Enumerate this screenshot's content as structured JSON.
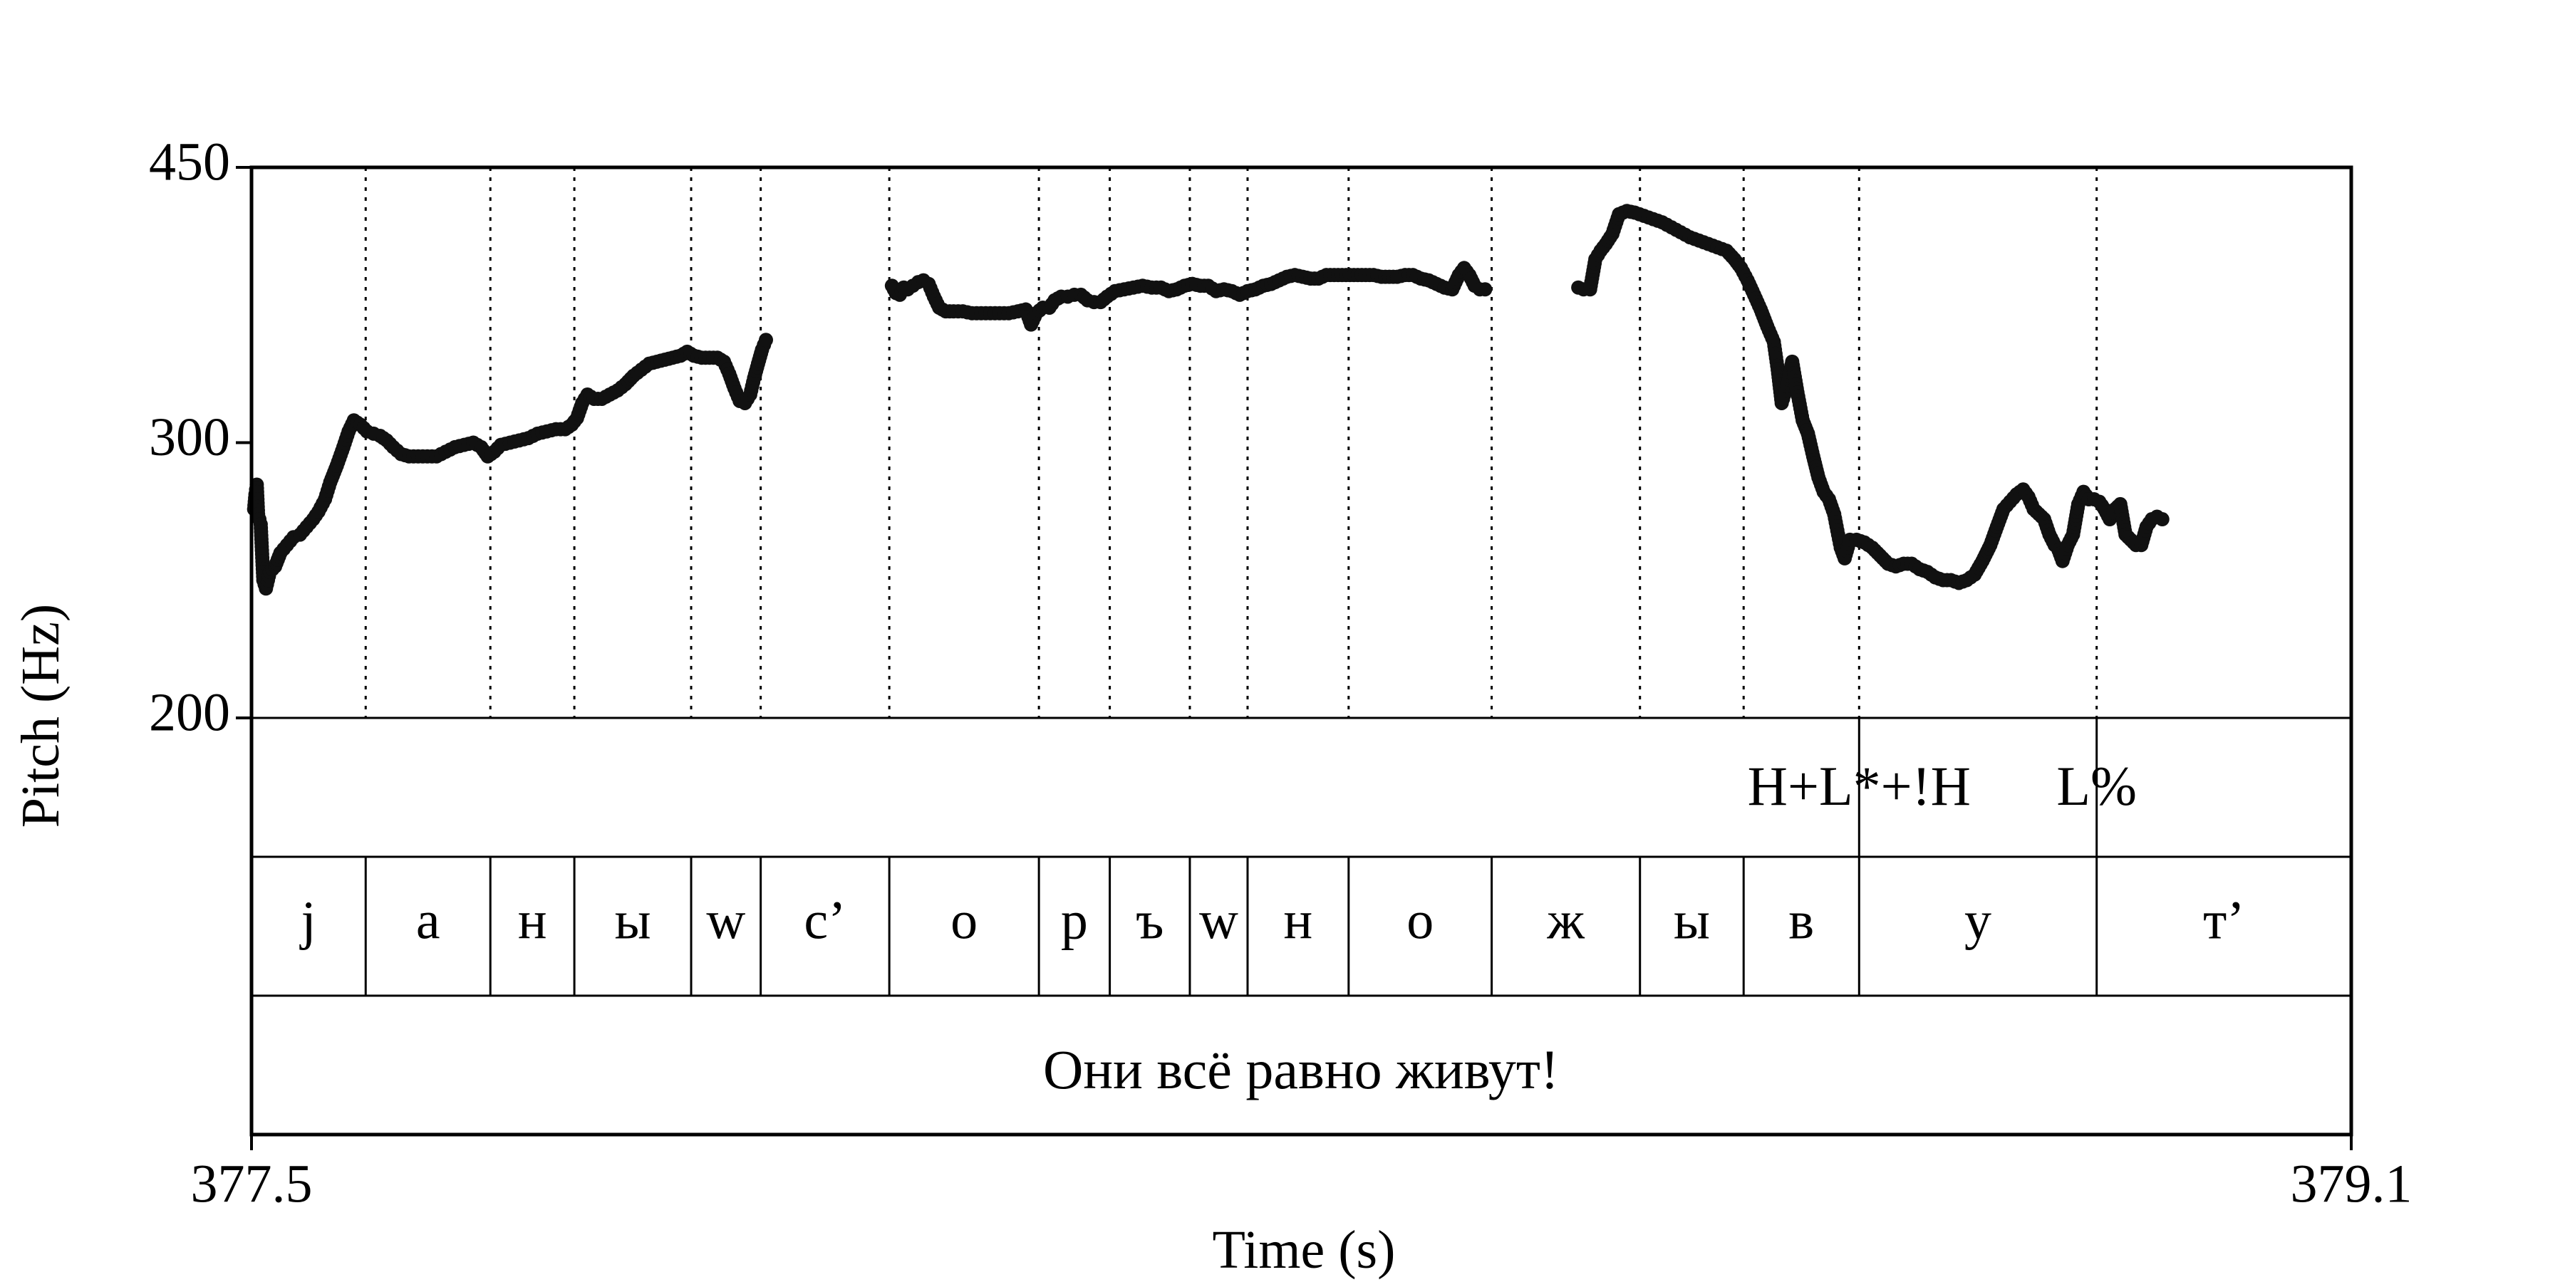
{
  "chart_data": {
    "type": "scatter",
    "title": "",
    "xlabel": "Time (s)",
    "ylabel": "Pitch (Hz)",
    "xlim": [
      377.5,
      379.1
    ],
    "ylim": [
      200,
      450
    ],
    "y_scale": "log",
    "x_tick_labels": [
      "377.5",
      "379.1"
    ],
    "x_ticks": [
      377.5,
      379.1
    ],
    "y_tick_labels": [
      "200",
      "300",
      "450"
    ],
    "y_ticks": [
      200,
      300,
      450
    ],
    "segment_boundaries": [
      377.587,
      377.682,
      377.746,
      377.835,
      377.888,
      377.986,
      378.1,
      378.154,
      378.215,
      378.259,
      378.336,
      378.445,
      378.558,
      378.637,
      378.725,
      378.906
    ],
    "segments": [
      {
        "label": "j",
        "start": 377.5,
        "end": 377.587
      },
      {
        "label": "а",
        "start": 377.587,
        "end": 377.682
      },
      {
        "label": "н",
        "start": 377.682,
        "end": 377.746
      },
      {
        "label": "ы",
        "start": 377.746,
        "end": 377.835
      },
      {
        "label": "w",
        "start": 377.835,
        "end": 377.888
      },
      {
        "label": "с’",
        "start": 377.888,
        "end": 377.986
      },
      {
        "label": "о",
        "start": 377.986,
        "end": 378.1
      },
      {
        "label": "р",
        "start": 378.1,
        "end": 378.154
      },
      {
        "label": "ъ",
        "start": 378.154,
        "end": 378.215
      },
      {
        "label": "w",
        "start": 378.215,
        "end": 378.259
      },
      {
        "label": "н",
        "start": 378.259,
        "end": 378.336
      },
      {
        "label": "о",
        "start": 378.336,
        "end": 378.445
      },
      {
        "label": "ж",
        "start": 378.445,
        "end": 378.558
      },
      {
        "label": "ы",
        "start": 378.558,
        "end": 378.637
      },
      {
        "label": "в",
        "start": 378.637,
        "end": 378.725
      },
      {
        "label": "у",
        "start": 378.725,
        "end": 378.906
      },
      {
        "label": "т’",
        "start": 378.906,
        "end": 379.1
      }
    ],
    "tones": [
      {
        "label": "H+L*+!H",
        "time": 378.725
      },
      {
        "label": "L%",
        "time": 378.906
      }
    ],
    "sentence": "Они всё равно живут!",
    "pitch_contours": [
      {
        "points": [
          [
            377.502,
            272
          ],
          [
            377.503,
            278
          ],
          [
            377.504,
            282
          ],
          [
            377.505,
            270
          ],
          [
            377.507,
            266
          ],
          [
            377.509,
            245
          ],
          [
            377.511,
            242
          ],
          [
            377.514,
            248
          ],
          [
            377.518,
            250
          ],
          [
            377.522,
            255
          ],
          [
            377.527,
            258
          ],
          [
            377.532,
            261
          ],
          [
            377.537,
            262
          ],
          [
            377.542,
            265
          ],
          [
            377.547,
            268
          ],
          [
            377.551,
            271
          ],
          [
            377.556,
            276
          ],
          [
            377.56,
            283
          ],
          [
            377.565,
            290
          ],
          [
            377.57,
            298
          ],
          [
            377.574,
            305
          ],
          [
            377.578,
            310
          ],
          [
            377.583,
            308
          ],
          [
            377.588,
            305
          ],
          [
            377.593,
            304
          ],
          [
            377.598,
            303
          ],
          [
            377.603,
            301
          ],
          [
            377.608,
            298
          ],
          [
            377.614,
            295
          ],
          [
            377.62,
            294
          ],
          [
            377.627,
            294
          ],
          [
            377.634,
            294
          ],
          [
            377.641,
            294
          ],
          [
            377.648,
            296
          ],
          [
            377.655,
            298
          ],
          [
            377.662,
            299
          ],
          [
            377.669,
            300
          ],
          [
            377.675,
            298
          ],
          [
            377.68,
            294
          ],
          [
            377.685,
            296
          ],
          [
            377.69,
            299
          ],
          [
            377.697,
            300
          ],
          [
            377.704,
            301
          ],
          [
            377.711,
            302
          ],
          [
            377.718,
            304
          ],
          [
            377.725,
            305
          ],
          [
            377.732,
            306
          ],
          [
            377.739,
            306
          ],
          [
            377.744,
            308
          ],
          [
            377.748,
            311
          ],
          [
            377.752,
            318
          ],
          [
            377.756,
            322
          ],
          [
            377.761,
            320
          ],
          [
            377.767,
            320
          ],
          [
            377.773,
            322
          ],
          [
            377.779,
            324
          ],
          [
            377.785,
            327
          ],
          [
            377.791,
            331
          ],
          [
            377.797,
            334
          ],
          [
            377.803,
            337
          ],
          [
            377.809,
            338
          ],
          [
            377.815,
            339
          ],
          [
            377.821,
            340
          ],
          [
            377.827,
            341
          ],
          [
            377.832,
            343
          ],
          [
            377.837,
            341
          ],
          [
            377.843,
            340
          ],
          [
            377.849,
            340
          ],
          [
            377.855,
            340
          ],
          [
            377.86,
            338
          ],
          [
            377.864,
            332
          ],
          [
            377.868,
            325
          ],
          [
            377.872,
            319
          ],
          [
            377.876,
            318
          ],
          [
            377.88,
            322
          ],
          [
            377.883,
            330
          ],
          [
            377.886,
            337
          ],
          [
            377.889,
            344
          ],
          [
            377.892,
            349
          ]
        ]
      },
      {
        "points": [
          [
            377.988,
            378
          ],
          [
            377.991,
            374
          ],
          [
            377.994,
            373
          ],
          [
            377.997,
            377
          ],
          [
            378.0,
            376
          ],
          [
            378.004,
            378
          ],
          [
            378.008,
            380
          ],
          [
            378.012,
            381
          ],
          [
            378.016,
            379
          ],
          [
            378.02,
            372
          ],
          [
            378.024,
            366
          ],
          [
            378.029,
            364
          ],
          [
            378.035,
            364
          ],
          [
            378.042,
            364
          ],
          [
            378.049,
            363
          ],
          [
            378.056,
            363
          ],
          [
            378.063,
            363
          ],
          [
            378.07,
            363
          ],
          [
            378.077,
            363
          ],
          [
            378.084,
            364
          ],
          [
            378.09,
            365
          ],
          [
            378.094,
            357
          ],
          [
            378.098,
            363
          ],
          [
            378.103,
            366
          ],
          [
            378.108,
            366
          ],
          [
            378.112,
            370
          ],
          [
            378.117,
            372
          ],
          [
            378.122,
            372
          ],
          [
            378.127,
            373
          ],
          [
            378.132,
            373
          ],
          [
            378.137,
            370
          ],
          [
            378.142,
            369
          ],
          [
            378.147,
            369
          ],
          [
            378.152,
            372
          ],
          [
            378.158,
            375
          ],
          [
            378.165,
            376
          ],
          [
            378.172,
            377
          ],
          [
            378.179,
            378
          ],
          [
            378.186,
            377
          ],
          [
            378.193,
            377
          ],
          [
            378.199,
            375
          ],
          [
            378.205,
            376
          ],
          [
            378.211,
            378
          ],
          [
            378.217,
            379
          ],
          [
            378.223,
            378
          ],
          [
            378.229,
            378
          ],
          [
            378.235,
            375
          ],
          [
            378.241,
            376
          ],
          [
            378.247,
            375
          ],
          [
            378.253,
            373
          ],
          [
            378.259,
            375
          ],
          [
            378.265,
            376
          ],
          [
            378.271,
            378
          ],
          [
            378.277,
            379
          ],
          [
            378.283,
            381
          ],
          [
            378.289,
            383
          ],
          [
            378.295,
            384
          ],
          [
            378.301,
            383
          ],
          [
            378.307,
            382
          ],
          [
            378.313,
            382
          ],
          [
            378.319,
            384
          ],
          [
            378.325,
            384
          ],
          [
            378.331,
            384
          ],
          [
            378.337,
            384
          ],
          [
            378.343,
            384
          ],
          [
            378.349,
            384
          ],
          [
            378.355,
            384
          ],
          [
            378.361,
            383
          ],
          [
            378.367,
            383
          ],
          [
            378.373,
            383
          ],
          [
            378.379,
            384
          ],
          [
            378.385,
            384
          ],
          [
            378.391,
            382
          ],
          [
            378.397,
            381
          ],
          [
            378.403,
            379
          ],
          [
            378.409,
            377
          ],
          [
            378.415,
            376
          ],
          [
            378.42,
            384
          ],
          [
            378.424,
            388
          ],
          [
            378.428,
            384
          ],
          [
            378.432,
            378
          ],
          [
            378.436,
            376
          ],
          [
            378.44,
            376
          ]
        ]
      },
      {
        "points": [
          [
            378.511,
            377
          ],
          [
            378.515,
            376
          ],
          [
            378.52,
            376
          ],
          [
            378.524,
            393
          ],
          [
            378.528,
            398
          ],
          [
            378.532,
            402
          ],
          [
            378.537,
            408
          ],
          [
            378.542,
            420
          ],
          [
            378.548,
            422
          ],
          [
            378.554,
            421
          ],
          [
            378.561,
            419
          ],
          [
            378.568,
            417
          ],
          [
            378.575,
            415
          ],
          [
            378.582,
            412
          ],
          [
            378.589,
            409
          ],
          [
            378.596,
            406
          ],
          [
            378.603,
            404
          ],
          [
            378.61,
            402
          ],
          [
            378.617,
            400
          ],
          [
            378.624,
            398
          ],
          [
            378.63,
            393
          ],
          [
            378.635,
            388
          ],
          [
            378.64,
            381
          ],
          [
            378.645,
            373
          ],
          [
            378.65,
            365
          ],
          [
            378.655,
            356
          ],
          [
            378.66,
            348
          ],
          [
            378.663,
            334
          ],
          [
            378.666,
            318
          ],
          [
            378.67,
            326
          ],
          [
            378.674,
            338
          ],
          [
            378.678,
            323
          ],
          [
            378.682,
            310
          ],
          [
            378.686,
            304
          ],
          [
            378.69,
            294
          ],
          [
            378.694,
            285
          ],
          [
            378.698,
            279
          ],
          [
            378.702,
            276
          ],
          [
            378.706,
            270
          ],
          [
            378.709,
            262
          ],
          [
            378.711,
            257
          ],
          [
            378.714,
            253
          ],
          [
            378.718,
            260
          ],
          [
            378.723,
            260
          ],
          [
            378.729,
            259
          ],
          [
            378.735,
            257
          ],
          [
            378.741,
            254
          ],
          [
            378.747,
            251
          ],
          [
            378.753,
            250
          ],
          [
            378.759,
            251
          ],
          [
            378.765,
            251
          ],
          [
            378.771,
            249
          ],
          [
            378.777,
            248
          ],
          [
            378.783,
            246
          ],
          [
            378.789,
            245
          ],
          [
            378.795,
            245
          ],
          [
            378.801,
            244
          ],
          [
            378.807,
            245
          ],
          [
            378.813,
            247
          ],
          [
            378.819,
            252
          ],
          [
            378.825,
            258
          ],
          [
            378.83,
            265
          ],
          [
            378.835,
            272
          ],
          [
            378.84,
            275
          ],
          [
            378.845,
            278
          ],
          [
            378.85,
            280
          ],
          [
            378.854,
            277
          ],
          [
            378.858,
            272
          ],
          [
            378.862,
            270
          ],
          [
            378.866,
            268
          ],
          [
            378.87,
            262
          ],
          [
            378.874,
            258
          ],
          [
            378.877,
            256
          ],
          [
            378.88,
            252
          ],
          [
            378.884,
            258
          ],
          [
            378.888,
            262
          ],
          [
            378.892,
            274
          ],
          [
            378.896,
            279
          ],
          [
            378.9,
            276
          ],
          [
            378.904,
            276
          ],
          [
            378.908,
            275
          ],
          [
            378.912,
            272
          ],
          [
            378.916,
            268
          ],
          [
            378.92,
            272
          ],
          [
            378.924,
            274
          ],
          [
            378.928,
            262
          ],
          [
            378.932,
            260
          ],
          [
            378.936,
            258
          ],
          [
            378.94,
            258
          ],
          [
            378.944,
            265
          ],
          [
            378.948,
            268
          ],
          [
            378.952,
            269
          ],
          [
            378.956,
            268
          ]
        ]
      }
    ]
  }
}
